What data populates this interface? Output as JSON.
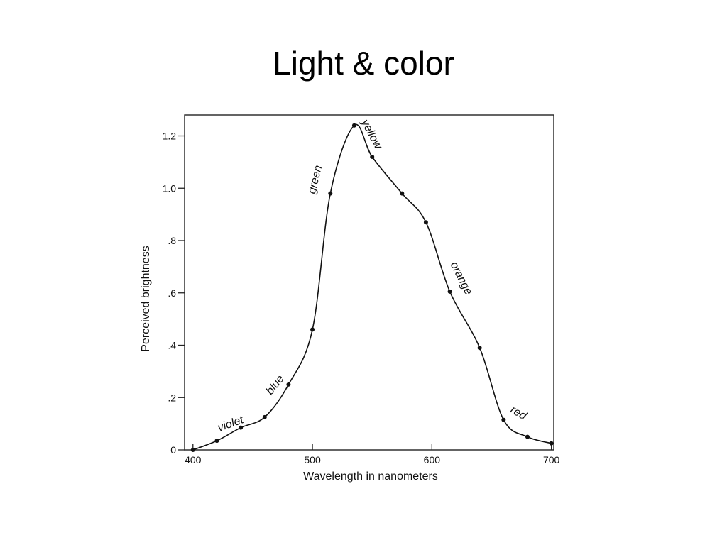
{
  "slide": {
    "title": "Light & color"
  },
  "chart_data": {
    "type": "line",
    "title": "",
    "xlabel": "Wavelength in nanometers",
    "ylabel": "Perceived brightness",
    "xlim": [
      393,
      702
    ],
    "ylim": [
      0,
      1.28
    ],
    "grid": false,
    "x_ticks": [
      {
        "value": 400,
        "label": "400"
      },
      {
        "value": 500,
        "label": "500"
      },
      {
        "value": 600,
        "label": "600"
      },
      {
        "value": 700,
        "label": "700"
      }
    ],
    "y_ticks": [
      {
        "value": 0,
        "label": "0"
      },
      {
        "value": 0.2,
        "label": ".2"
      },
      {
        "value": 0.4,
        "label": ".4"
      },
      {
        "value": 0.6,
        "label": ".6"
      },
      {
        "value": 0.8,
        "label": ".8"
      },
      {
        "value": 1.0,
        "label": "1.0"
      },
      {
        "value": 1.2,
        "label": "1.2"
      }
    ],
    "series": [
      {
        "points": [
          {
            "x": 400,
            "y": 0.0
          },
          {
            "x": 420,
            "y": 0.035
          },
          {
            "x": 440,
            "y": 0.085
          },
          {
            "x": 460,
            "y": 0.125
          },
          {
            "x": 480,
            "y": 0.25
          },
          {
            "x": 500,
            "y": 0.46
          },
          {
            "x": 515,
            "y": 0.98
          },
          {
            "x": 535,
            "y": 1.24
          },
          {
            "x": 550,
            "y": 1.12
          },
          {
            "x": 575,
            "y": 0.98
          },
          {
            "x": 595,
            "y": 0.87
          },
          {
            "x": 615,
            "y": 0.605
          },
          {
            "x": 640,
            "y": 0.39
          },
          {
            "x": 660,
            "y": 0.115
          },
          {
            "x": 680,
            "y": 0.05
          },
          {
            "x": 700,
            "y": 0.025
          }
        ]
      }
    ],
    "annotations": [
      {
        "text": "violet",
        "x": 422,
        "y": 0.07,
        "angle": -20,
        "anchor": "start"
      },
      {
        "text": "blue",
        "x": 471,
        "y": 0.24,
        "angle": -52,
        "anchor": "middle"
      },
      {
        "text": "green",
        "x": 505,
        "y": 1.03,
        "angle": -76,
        "anchor": "middle"
      },
      {
        "text": "yellow",
        "x": 547,
        "y": 1.2,
        "angle": 62,
        "anchor": "middle"
      },
      {
        "text": "orange",
        "x": 622,
        "y": 0.65,
        "angle": 63,
        "anchor": "middle"
      },
      {
        "text": "red",
        "x": 671,
        "y": 0.13,
        "angle": 30,
        "anchor": "middle"
      }
    ]
  }
}
